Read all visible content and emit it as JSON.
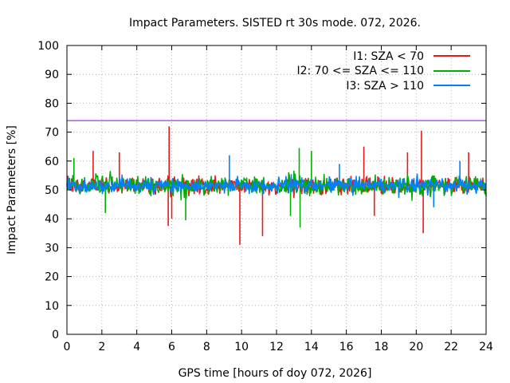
{
  "chart_data": {
    "type": "line",
    "title": "Impact Parameters. SISTED rt 30s mode. 072, 2026.",
    "xlabel": "GPS time [hours of doy 072, 2026]",
    "ylabel": "Impact Parameters [%]",
    "xlim": [
      0,
      24
    ],
    "ylim": [
      0,
      100
    ],
    "x_ticks": [
      0,
      2,
      4,
      6,
      8,
      10,
      12,
      14,
      16,
      18,
      20,
      22,
      24
    ],
    "y_ticks": [
      0,
      10,
      20,
      30,
      40,
      50,
      60,
      70,
      80,
      90,
      100
    ],
    "grid": true,
    "legend_position": "top-right",
    "reference_line": {
      "y": 74,
      "color": "#9400d3"
    },
    "series": [
      {
        "name": "I1: SZA < 70",
        "color": "#e41a1c",
        "center": 51.5,
        "typical_range": [
          45,
          58
        ],
        "notable_extremes": [
          {
            "x": 5.85,
            "y": 72
          },
          {
            "x": 5.8,
            "y": 37.5
          },
          {
            "x": 9.9,
            "y": 31
          },
          {
            "x": 11.2,
            "y": 34
          },
          {
            "x": 20.3,
            "y": 70.5
          },
          {
            "x": 20.4,
            "y": 35
          },
          {
            "x": 17.0,
            "y": 65
          },
          {
            "x": 1.5,
            "y": 63.5
          },
          {
            "x": 3.0,
            "y": 63
          },
          {
            "x": 19.5,
            "y": 63
          },
          {
            "x": 23.0,
            "y": 63
          },
          {
            "x": 6.0,
            "y": 40
          },
          {
            "x": 17.6,
            "y": 41
          }
        ]
      },
      {
        "name": "I2: 70 <= SZA <= 110",
        "color": "#00b000",
        "center": 51.5,
        "typical_range": [
          44,
          59
        ],
        "notable_extremes": [
          {
            "x": 13.3,
            "y": 64.5
          },
          {
            "x": 13.35,
            "y": 37
          },
          {
            "x": 6.8,
            "y": 39.5
          },
          {
            "x": 14.0,
            "y": 63.5
          },
          {
            "x": 0.4,
            "y": 61
          },
          {
            "x": 12.8,
            "y": 41
          },
          {
            "x": 2.2,
            "y": 42
          }
        ]
      },
      {
        "name": "I3: SZA > 110",
        "color": "#0080ff",
        "center": 51.5,
        "typical_range": [
          46,
          57
        ],
        "notable_extremes": [
          {
            "x": 9.3,
            "y": 62
          },
          {
            "x": 22.5,
            "y": 60
          },
          {
            "x": 15.6,
            "y": 59
          },
          {
            "x": 21.0,
            "y": 44
          }
        ]
      }
    ]
  }
}
